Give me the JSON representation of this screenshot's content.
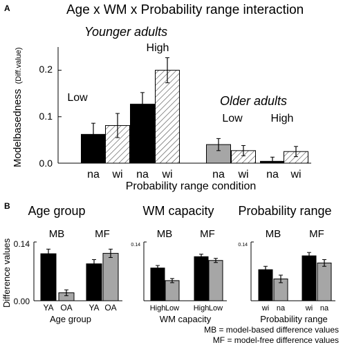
{
  "panel_a": {
    "label": "A",
    "title": "Age x WM x Probability range interaction",
    "ylabel": "Modelbasedness",
    "ylabel_sub": "(Diff.value)",
    "xlabel": "Probability range condition",
    "group_younger": "Younger adults",
    "group_older": "Older adults",
    "low_label": "Low",
    "high_label": "High",
    "yticks": [
      "0.0",
      "0.1",
      "0.2"
    ]
  },
  "panel_b": {
    "label": "B",
    "ylabel": "Difference values",
    "legend_mb": "MB = model-based difference values",
    "legend_mf": "MF = model-free difference values",
    "mb": "MB",
    "mf": "MF",
    "subtitles": [
      "Age group",
      "WM capacity",
      "Probability range"
    ],
    "xlabels": [
      "Age group",
      "WM capacity",
      "Probability range"
    ],
    "yticks_main": [
      "0.14",
      "0.00"
    ],
    "ytick_small": "0.14"
  },
  "chart_data": [
    {
      "type": "bar",
      "title": "Age x WM x Probability range interaction",
      "xlabel": "Probability range condition",
      "ylabel": "Modelbasedness (Diff.value)",
      "ylim": [
        0,
        0.25
      ],
      "categories": [
        "na",
        "wi",
        "na",
        "wi",
        "na",
        "wi",
        "na",
        "wi"
      ],
      "groups": [
        "Younger adults Low",
        "Younger adults Low",
        "Younger adults High",
        "Younger adults High",
        "Older adults Low",
        "Older adults Low",
        "Older adults High",
        "Older adults High"
      ],
      "values": [
        0.062,
        0.081,
        0.127,
        0.2,
        0.04,
        0.027,
        0.004,
        0.025
      ],
      "errors": [
        0.024,
        0.026,
        0.025,
        0.027,
        0.013,
        0.011,
        0.009,
        0.011
      ],
      "fills": [
        "black",
        "hatched",
        "black",
        "hatched",
        "gray",
        "hatched",
        "black",
        "hatched"
      ]
    },
    {
      "type": "bar",
      "title": "Age group",
      "xlabel": "Age group",
      "ylabel": "Difference values",
      "ylim": [
        0,
        0.14
      ],
      "clusters": [
        "MB",
        "MF"
      ],
      "categories": [
        "YA",
        "OA",
        "YA",
        "OA"
      ],
      "values": [
        0.112,
        0.019,
        0.088,
        0.113
      ],
      "errors": [
        0.011,
        0.007,
        0.01,
        0.01
      ]
    },
    {
      "type": "bar",
      "title": "WM capacity",
      "xlabel": "WM capacity",
      "ylim": [
        0,
        0.14
      ],
      "clusters": [
        "MB",
        "MF"
      ],
      "categories": [
        "High",
        "Low",
        "High",
        "Low"
      ],
      "values": [
        0.078,
        0.048,
        0.105,
        0.096
      ],
      "errors": [
        0.006,
        0.005,
        0.006,
        0.005
      ]
    },
    {
      "type": "bar",
      "title": "Probability range",
      "xlabel": "Probability range",
      "ylim": [
        0,
        0.14
      ],
      "clusters": [
        "MB",
        "MF"
      ],
      "categories": [
        "wi",
        "na",
        "wi",
        "na"
      ],
      "values": [
        0.074,
        0.052,
        0.107,
        0.09
      ],
      "errors": [
        0.008,
        0.009,
        0.008,
        0.008
      ]
    }
  ],
  "colors": {
    "black_bar": "#000000",
    "gray_bar": "#a6a6a6",
    "hatch_bg": "#ffffff",
    "axis": "#000000"
  }
}
